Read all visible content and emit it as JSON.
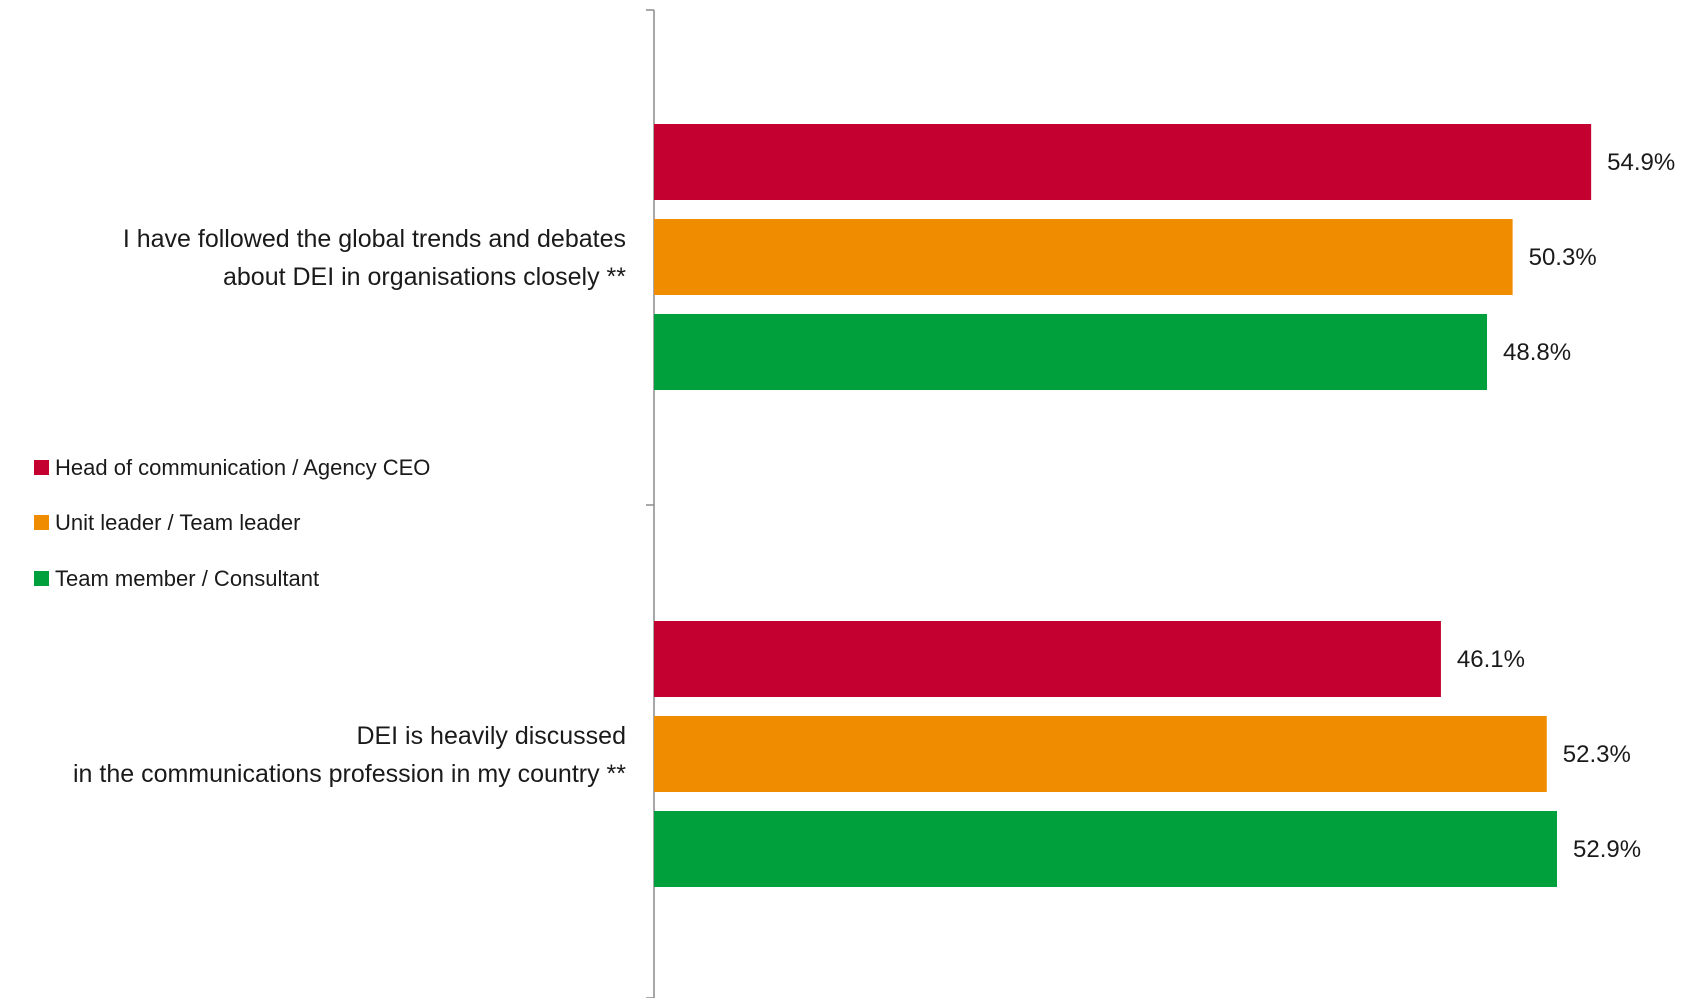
{
  "chart_data": {
    "type": "bar",
    "orientation": "horizontal",
    "title": "",
    "xlabel": "",
    "ylabel": "",
    "xlim": [
      0,
      60
    ],
    "grid": false,
    "legend_position": "left-middle",
    "categories": [
      {
        "lines": [
          "I have followed the global trends and debates",
          "about DEI in organisations closely **"
        ]
      },
      {
        "lines": [
          "DEI is heavily discussed",
          "in the communications profession in my country **"
        ]
      }
    ],
    "series": [
      {
        "name": "Head of communication / Agency CEO",
        "color": "#c3002f",
        "values": [
          54.9,
          46.1
        ],
        "labels": [
          "54.9%",
          "46.1%"
        ]
      },
      {
        "name": "Unit leader / Team leader",
        "color": "#f08c00",
        "values": [
          50.3,
          52.3
        ],
        "labels": [
          "50.3%",
          "52.3%"
        ]
      },
      {
        "name": "Team member / Consultant",
        "color": "#00a03c",
        "values": [
          48.8,
          52.9
        ],
        "labels": [
          "48.8%",
          "52.9%"
        ]
      }
    ]
  }
}
